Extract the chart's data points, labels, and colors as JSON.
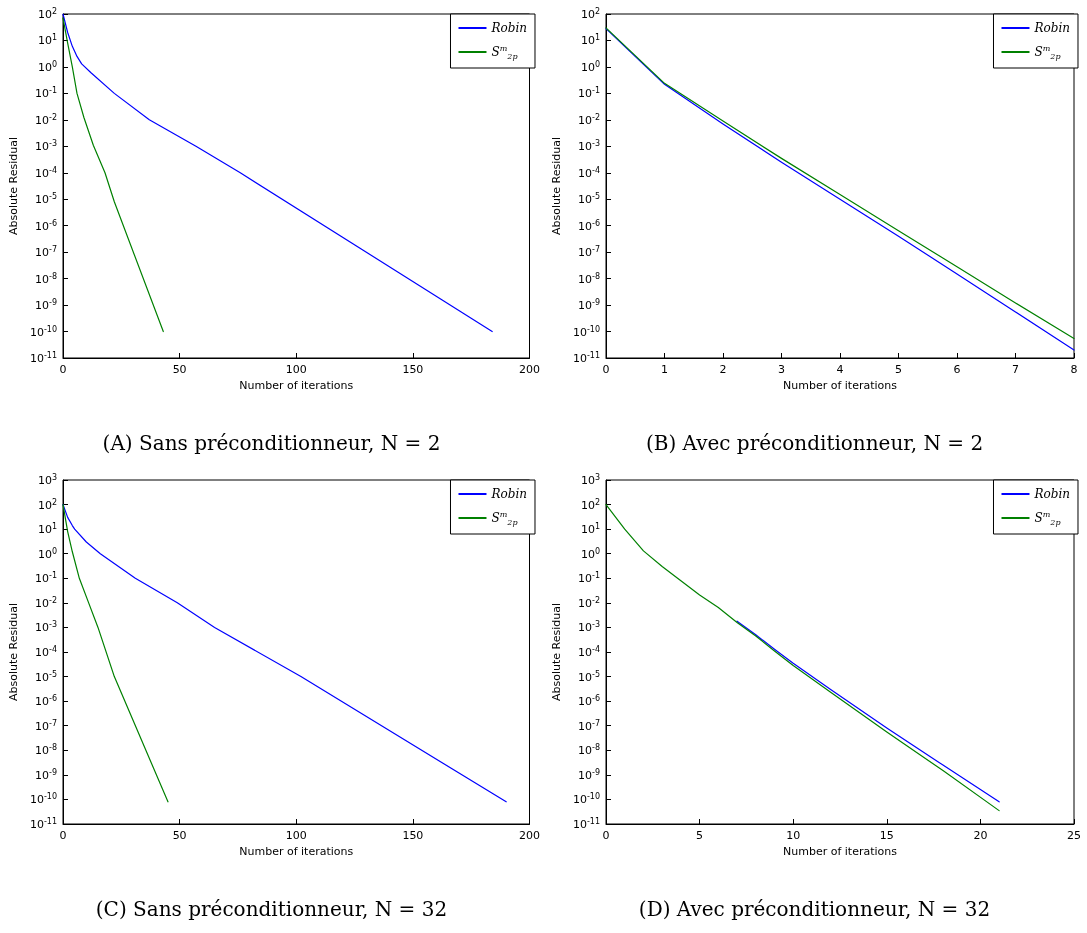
{
  "chart_data": [
    {
      "type": "line",
      "title": "(A) Sans préconditionneur, N = 2",
      "xlabel": "Number of iterations",
      "ylabel": "Absolute Residual",
      "log": "y",
      "grid": false,
      "legend": "top right",
      "marker": "none",
      "line_style": "solid",
      "xlim": [
        0,
        200
      ],
      "xticks": [
        0,
        50,
        100,
        150,
        200
      ],
      "ylim": [
        1e-11,
        100
      ],
      "yticks": [
        {
          "value": 1e-11,
          "label": "10$^{-11}$"
        },
        {
          "value": 1e-10,
          "label": "10$^{-10}$"
        },
        {
          "value": 1e-09,
          "label": "10$^{-9}$"
        },
        {
          "value": 1e-08,
          "label": "10$^{-8}$"
        },
        {
          "value": 1e-07,
          "label": "10$^{-7}$"
        },
        {
          "value": 1e-06,
          "label": "10$^{-6}$"
        },
        {
          "value": 1e-05,
          "label": "10$^{-5}$"
        },
        {
          "value": 0.0001,
          "label": "10$^{-4}$"
        },
        {
          "value": 0.001,
          "label": "10$^{-3}$"
        },
        {
          "value": 0.01,
          "label": "10$^{-2}$"
        },
        {
          "value": 0.1,
          "label": "10$^{-1}$"
        },
        {
          "value": 1,
          "label": "10$^{0}$"
        },
        {
          "value": 10,
          "label": "10$^{1}$"
        },
        {
          "value": 100,
          "label": "10$^{2}$"
        }
      ],
      "series": [
        {
          "name": "Robin",
          "color": "#0000ff",
          "x": [
            0,
            2,
            4,
            6,
            8,
            12,
            22,
            37,
            57,
            76,
            184
          ],
          "values": [
            100,
            20,
            6,
            2.5,
            1.3,
            0.6,
            0.1,
            0.01,
            0.001,
            0.0001,
            1e-10
          ]
        },
        {
          "name": "S$^{m}$$_{2p}$",
          "color": "#008000",
          "x": [
            0,
            2,
            4,
            6,
            9,
            13,
            18,
            22,
            43
          ],
          "values": [
            70,
            8,
            1,
            0.1,
            0.012,
            0.0011,
            0.0001,
            8e-06,
            1e-10
          ]
        }
      ]
    },
    {
      "type": "line",
      "title": "(B) Avec préconditionneur, N = 2",
      "xlabel": "Number of iterations",
      "ylabel": "Absolute Residual",
      "log": "y",
      "grid": false,
      "legend": "top right",
      "marker": "none",
      "line_style": "solid",
      "xlim": [
        0,
        8
      ],
      "xticks": [
        0,
        1,
        2,
        3,
        4,
        5,
        6,
        7,
        8
      ],
      "ylim": [
        1e-11,
        100
      ],
      "yticks": [
        {
          "value": 1e-11,
          "label": "10$^{-11}$"
        },
        {
          "value": 1e-10,
          "label": "10$^{-10}$"
        },
        {
          "value": 1e-09,
          "label": "10$^{-9}$"
        },
        {
          "value": 1e-08,
          "label": "10$^{-8}$"
        },
        {
          "value": 1e-07,
          "label": "10$^{-7}$"
        },
        {
          "value": 1e-06,
          "label": "10$^{-6}$"
        },
        {
          "value": 1e-05,
          "label": "10$^{-5}$"
        },
        {
          "value": 0.0001,
          "label": "10$^{-4}$"
        },
        {
          "value": 0.001,
          "label": "10$^{-3}$"
        },
        {
          "value": 0.01,
          "label": "10$^{-2}$"
        },
        {
          "value": 0.1,
          "label": "10$^{-1}$"
        },
        {
          "value": 1,
          "label": "10$^{0}$"
        },
        {
          "value": 10,
          "label": "10$^{1}$"
        },
        {
          "value": 100,
          "label": "10$^{2}$"
        }
      ],
      "series": [
        {
          "name": "Robin",
          "color": "#0000ff",
          "x": [
            0,
            1,
            2,
            3,
            4,
            5,
            6,
            7,
            8
          ],
          "values": [
            28,
            0.22,
            0.007,
            0.00025,
            1e-05,
            4e-07,
            1.5e-08,
            5.5e-10,
            2e-11
          ]
        },
        {
          "name": "S$^{m}$$_{2p}$",
          "color": "#008000",
          "x": [
            0,
            1,
            2,
            3,
            4,
            5,
            6,
            7,
            8
          ],
          "values": [
            30,
            0.24,
            0.009,
            0.00035,
            1.5e-05,
            6.5e-07,
            2.8e-08,
            1.2e-09,
            5.5e-11
          ]
        }
      ]
    },
    {
      "type": "line",
      "title": "(C) Sans préconditionneur, N = 32",
      "xlabel": "Number of iterations",
      "ylabel": "Absolute Residual",
      "log": "y",
      "grid": false,
      "legend": "top right",
      "marker": "none",
      "line_style": "solid",
      "xlim": [
        0,
        200
      ],
      "xticks": [
        0,
        50,
        100,
        150,
        200
      ],
      "ylim": [
        1e-11,
        1000
      ],
      "yticks": [
        {
          "value": 1e-11,
          "label": "10$^{-11}$"
        },
        {
          "value": 1e-10,
          "label": "10$^{-10}$"
        },
        {
          "value": 1e-09,
          "label": "10$^{-9}$"
        },
        {
          "value": 1e-08,
          "label": "10$^{-8}$"
        },
        {
          "value": 1e-07,
          "label": "10$^{-7}$"
        },
        {
          "value": 1e-06,
          "label": "10$^{-6}$"
        },
        {
          "value": 1e-05,
          "label": "10$^{-5}$"
        },
        {
          "value": 0.0001,
          "label": "10$^{-4}$"
        },
        {
          "value": 0.001,
          "label": "10$^{-3}$"
        },
        {
          "value": 0.01,
          "label": "10$^{-2}$"
        },
        {
          "value": 0.1,
          "label": "10$^{-1}$"
        },
        {
          "value": 1,
          "label": "10$^{0}$"
        },
        {
          "value": 10,
          "label": "10$^{1}$"
        },
        {
          "value": 100,
          "label": "10$^{2}$"
        },
        {
          "value": 1000,
          "label": "10$^{3}$"
        }
      ],
      "series": [
        {
          "name": "Robin",
          "color": "#0000ff",
          "x": [
            0,
            2,
            4,
            5,
            10,
            16,
            31,
            49,
            65,
            102,
            190
          ],
          "values": [
            100,
            30,
            14,
            10,
            3,
            1,
            0.1,
            0.01,
            0.001,
            1e-05,
            8e-11
          ]
        },
        {
          "name": "S$^{m}$$_{2p}$",
          "color": "#008000",
          "x": [
            0,
            2,
            4,
            7,
            11,
            15,
            22,
            45
          ],
          "values": [
            100,
            8,
            1.2,
            0.1,
            0.01,
            0.001,
            1e-05,
            8e-11
          ]
        }
      ]
    },
    {
      "type": "line",
      "title": "(D) Avec préconditionneur, N = 32",
      "xlabel": "Number of iterations",
      "ylabel": "Absolute Residual",
      "log": "y",
      "grid": false,
      "legend": "top right",
      "marker": "none",
      "line_style": "solid",
      "xlim": [
        0,
        25
      ],
      "xticks": [
        0,
        5,
        10,
        15,
        20,
        25
      ],
      "ylim": [
        1e-11,
        1000
      ],
      "yticks": [
        {
          "value": 1e-11,
          "label": "10$^{-11}$"
        },
        {
          "value": 1e-10,
          "label": "10$^{-10}$"
        },
        {
          "value": 1e-09,
          "label": "10$^{-9}$"
        },
        {
          "value": 1e-08,
          "label": "10$^{-8}$"
        },
        {
          "value": 1e-07,
          "label": "10$^{-7}$"
        },
        {
          "value": 1e-06,
          "label": "10$^{-6}$"
        },
        {
          "value": 1e-05,
          "label": "10$^{-5}$"
        },
        {
          "value": 0.0001,
          "label": "10$^{-4}$"
        },
        {
          "value": 0.001,
          "label": "10$^{-3}$"
        },
        {
          "value": 0.01,
          "label": "10$^{-2}$"
        },
        {
          "value": 0.1,
          "label": "10$^{-1}$"
        },
        {
          "value": 1,
          "label": "10$^{0}$"
        },
        {
          "value": 10,
          "label": "10$^{1}$"
        },
        {
          "value": 100,
          "label": "10$^{2}$"
        },
        {
          "value": 1000,
          "label": "10$^{3}$"
        }
      ],
      "series": [
        {
          "name": "Robin",
          "color": "#0000ff",
          "x": [
            7,
            8,
            9,
            10,
            12,
            15,
            18,
            21
          ],
          "values": [
            0.0018,
            0.0005,
            0.00013,
            3.5e-05,
            3e-06,
            8e-08,
            2.5e-09,
            8e-11
          ]
        },
        {
          "name": "S$^{m}$$_{2p}$",
          "color": "#008000",
          "x": [
            0,
            1,
            2,
            3,
            4,
            5,
            6,
            7,
            8,
            9,
            10,
            12,
            15,
            18,
            21
          ],
          "values": [
            100,
            10,
            1.3,
            0.3,
            0.08,
            0.021,
            0.0065,
            0.0016,
            0.00045,
            0.00011,
            2.8e-05,
            2.3e-06,
            5.5e-08,
            1.5e-09,
            3.5e-11
          ]
        }
      ]
    }
  ]
}
